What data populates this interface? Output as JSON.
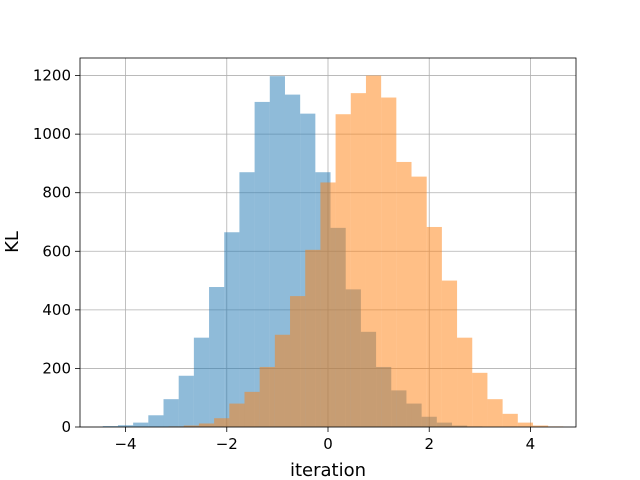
{
  "chart_data": {
    "type": "bar",
    "subtype": "overlaid-histogram",
    "title": "",
    "xlabel": "iteration",
    "ylabel": "KL",
    "xlim": [
      -4.9,
      4.9
    ],
    "ylim": [
      0,
      1260
    ],
    "xticks": [
      -4,
      -2,
      0,
      2,
      4
    ],
    "xtick_labels": [
      "−4",
      "−2",
      "0",
      "2",
      "4"
    ],
    "yticks": [
      0,
      200,
      400,
      600,
      800,
      1000,
      1200
    ],
    "grid": true,
    "series": [
      {
        "color": "#1f77b4",
        "alpha": 0.5,
        "bins": [
          {
            "x0": -4.45,
            "x1": -4.15,
            "value": 3
          },
          {
            "x0": -4.15,
            "x1": -3.85,
            "value": 6
          },
          {
            "x0": -3.85,
            "x1": -3.55,
            "value": 15
          },
          {
            "x0": -3.55,
            "x1": -3.25,
            "value": 40
          },
          {
            "x0": -3.25,
            "x1": -2.95,
            "value": 95
          },
          {
            "x0": -2.95,
            "x1": -2.65,
            "value": 175
          },
          {
            "x0": -2.65,
            "x1": -2.35,
            "value": 305
          },
          {
            "x0": -2.35,
            "x1": -2.05,
            "value": 478
          },
          {
            "x0": -2.05,
            "x1": -1.75,
            "value": 665
          },
          {
            "x0": -1.75,
            "x1": -1.45,
            "value": 870
          },
          {
            "x0": -1.45,
            "x1": -1.15,
            "value": 1110
          },
          {
            "x0": -1.15,
            "x1": -0.85,
            "value": 1198
          },
          {
            "x0": -0.85,
            "x1": -0.55,
            "value": 1135
          },
          {
            "x0": -0.55,
            "x1": -0.25,
            "value": 1070
          },
          {
            "x0": -0.25,
            "x1": 0.05,
            "value": 870
          },
          {
            "x0": 0.05,
            "x1": 0.35,
            "value": 680
          },
          {
            "x0": 0.35,
            "x1": 0.65,
            "value": 470
          },
          {
            "x0": 0.65,
            "x1": 0.95,
            "value": 325
          },
          {
            "x0": 0.95,
            "x1": 1.25,
            "value": 205
          },
          {
            "x0": 1.25,
            "x1": 1.55,
            "value": 125
          },
          {
            "x0": 1.55,
            "x1": 1.85,
            "value": 80
          },
          {
            "x0": 1.85,
            "x1": 2.15,
            "value": 35
          },
          {
            "x0": 2.15,
            "x1": 2.45,
            "value": 15
          },
          {
            "x0": 2.45,
            "x1": 2.75,
            "value": 5
          },
          {
            "x0": 2.75,
            "x1": 3.05,
            "value": 2
          }
        ]
      },
      {
        "color": "#ff7f0e",
        "alpha": 0.5,
        "bins": [
          {
            "x0": -3.15,
            "x1": -2.85,
            "value": 2
          },
          {
            "x0": -2.85,
            "x1": -2.55,
            "value": 5
          },
          {
            "x0": -2.55,
            "x1": -2.25,
            "value": 12
          },
          {
            "x0": -2.25,
            "x1": -1.95,
            "value": 30
          },
          {
            "x0": -1.95,
            "x1": -1.65,
            "value": 80
          },
          {
            "x0": -1.65,
            "x1": -1.35,
            "value": 120
          },
          {
            "x0": -1.35,
            "x1": -1.05,
            "value": 205
          },
          {
            "x0": -1.05,
            "x1": -0.75,
            "value": 315
          },
          {
            "x0": -0.75,
            "x1": -0.45,
            "value": 447
          },
          {
            "x0": -0.45,
            "x1": -0.15,
            "value": 605
          },
          {
            "x0": -0.15,
            "x1": 0.15,
            "value": 835
          },
          {
            "x0": 0.15,
            "x1": 0.45,
            "value": 1068
          },
          {
            "x0": 0.45,
            "x1": 0.75,
            "value": 1140
          },
          {
            "x0": 0.75,
            "x1": 1.05,
            "value": 1200
          },
          {
            "x0": 1.05,
            "x1": 1.35,
            "value": 1125
          },
          {
            "x0": 1.35,
            "x1": 1.65,
            "value": 905
          },
          {
            "x0": 1.65,
            "x1": 1.95,
            "value": 855
          },
          {
            "x0": 1.95,
            "x1": 2.25,
            "value": 683
          },
          {
            "x0": 2.25,
            "x1": 2.55,
            "value": 500
          },
          {
            "x0": 2.55,
            "x1": 2.85,
            "value": 305
          },
          {
            "x0": 2.85,
            "x1": 3.15,
            "value": 185
          },
          {
            "x0": 3.15,
            "x1": 3.45,
            "value": 95
          },
          {
            "x0": 3.45,
            "x1": 3.75,
            "value": 45
          },
          {
            "x0": 3.75,
            "x1": 4.05,
            "value": 15
          },
          {
            "x0": 4.05,
            "x1": 4.35,
            "value": 5
          },
          {
            "x0": 4.35,
            "x1": 4.65,
            "value": 2
          }
        ]
      }
    ]
  }
}
